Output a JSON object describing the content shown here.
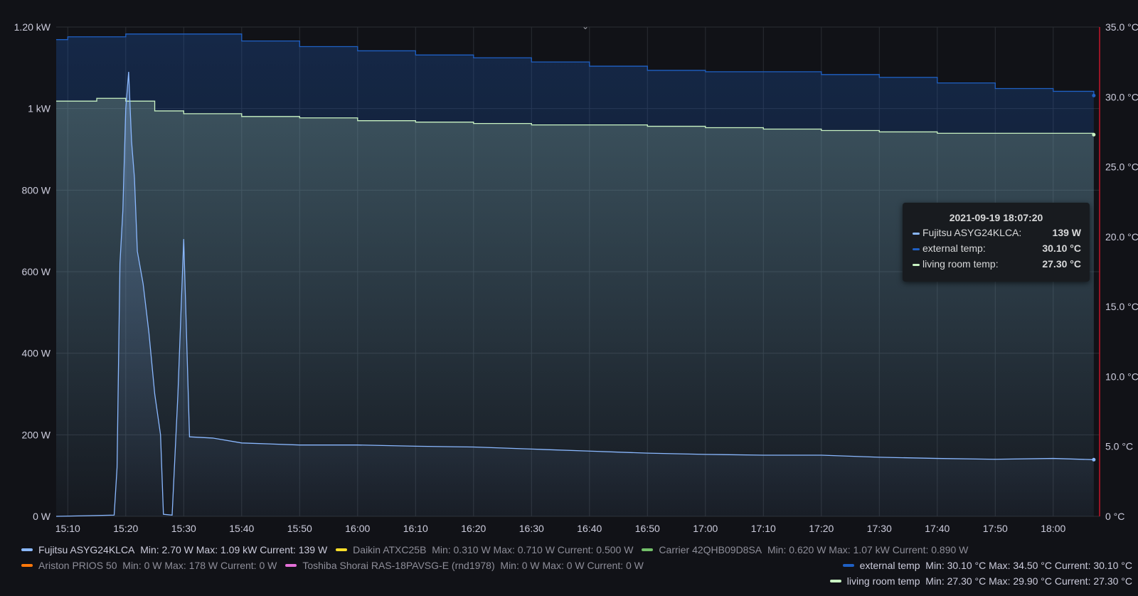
{
  "chart_data": {
    "type": "line",
    "x_tick_labels": [
      "15:10",
      "15:20",
      "15:30",
      "15:40",
      "15:50",
      "16:00",
      "16:10",
      "16:20",
      "16:30",
      "16:40",
      "16:50",
      "17:00",
      "17:10",
      "17:20",
      "17:30",
      "17:40",
      "17:50",
      "18:00"
    ],
    "x_range": [
      "15:08",
      "18:08"
    ],
    "y_left": {
      "ticks": [
        "0 W",
        "200 W",
        "400 W",
        "600 W",
        "800 W",
        "1 kW",
        "1.20 kW"
      ],
      "range": [
        0,
        1200
      ],
      "unit": "W"
    },
    "y_right": {
      "ticks": [
        "0 °C",
        "5.0 °C",
        "10.0 °C",
        "15.0 °C",
        "20.0 °C",
        "25.0 °C",
        "30.0 °C",
        "35.0 °C"
      ],
      "range": [
        0,
        35
      ],
      "unit": "°C"
    },
    "grid": true,
    "legend_placement": "bottom",
    "series": [
      {
        "name": "Fujitsu ASYG24KLCA",
        "axis": "left",
        "color": "#8ab8ff",
        "points": [
          [
            "15:08",
            0
          ],
          [
            "15:18",
            3
          ],
          [
            "15:18.5",
            120
          ],
          [
            "15:19",
            620
          ],
          [
            "15:19.5",
            750
          ],
          [
            "15:20",
            1000
          ],
          [
            "15:20.5",
            1090
          ],
          [
            "15:21",
            920
          ],
          [
            "15:21.5",
            830
          ],
          [
            "15:22",
            650
          ],
          [
            "15:23",
            570
          ],
          [
            "15:24",
            450
          ],
          [
            "15:25",
            300
          ],
          [
            "15:26",
            200
          ],
          [
            "15:26.5",
            5
          ],
          [
            "15:28",
            3
          ],
          [
            "15:29",
            300
          ],
          [
            "15:30",
            680
          ],
          [
            "15:31",
            195
          ],
          [
            "15:35",
            192
          ],
          [
            "15:40",
            180
          ],
          [
            "15:50",
            175
          ],
          [
            "16:00",
            175
          ],
          [
            "16:10",
            172
          ],
          [
            "16:20",
            170
          ],
          [
            "16:30",
            165
          ],
          [
            "16:40",
            160
          ],
          [
            "16:50",
            155
          ],
          [
            "17:00",
            152
          ],
          [
            "17:10",
            150
          ],
          [
            "17:20",
            150
          ],
          [
            "17:30",
            145
          ],
          [
            "17:40",
            142
          ],
          [
            "17:50",
            140
          ],
          [
            "18:00",
            142
          ],
          [
            "18:07",
            139
          ]
        ]
      },
      {
        "name": "external temp",
        "axis": "right",
        "color": "#1f60c4",
        "points": [
          [
            "15:08",
            34.1
          ],
          [
            "15:10",
            34.3
          ],
          [
            "15:20",
            34.5
          ],
          [
            "15:30",
            34.5
          ],
          [
            "15:40",
            34.0
          ],
          [
            "15:50",
            33.6
          ],
          [
            "16:00",
            33.3
          ],
          [
            "16:10",
            33.0
          ],
          [
            "16:20",
            32.8
          ],
          [
            "16:30",
            32.5
          ],
          [
            "16:40",
            32.2
          ],
          [
            "16:50",
            31.9
          ],
          [
            "17:00",
            31.8
          ],
          [
            "17:10",
            31.8
          ],
          [
            "17:20",
            31.6
          ],
          [
            "17:30",
            31.4
          ],
          [
            "17:40",
            31.0
          ],
          [
            "17:50",
            30.6
          ],
          [
            "18:00",
            30.4
          ],
          [
            "18:07",
            30.1
          ]
        ]
      },
      {
        "name": "living room temp",
        "axis": "right",
        "color": "#c8f2c2",
        "points": [
          [
            "15:08",
            29.7
          ],
          [
            "15:15",
            29.9
          ],
          [
            "15:20",
            29.7
          ],
          [
            "15:25",
            29.0
          ],
          [
            "15:30",
            28.8
          ],
          [
            "15:40",
            28.6
          ],
          [
            "15:50",
            28.5
          ],
          [
            "16:00",
            28.3
          ],
          [
            "16:10",
            28.2
          ],
          [
            "16:20",
            28.1
          ],
          [
            "16:30",
            28.0
          ],
          [
            "16:40",
            28.0
          ],
          [
            "16:50",
            27.9
          ],
          [
            "17:00",
            27.8
          ],
          [
            "17:10",
            27.7
          ],
          [
            "17:20",
            27.6
          ],
          [
            "17:30",
            27.5
          ],
          [
            "17:40",
            27.4
          ],
          [
            "17:50",
            27.4
          ],
          [
            "18:00",
            27.4
          ],
          [
            "18:07",
            27.3
          ]
        ]
      }
    ]
  },
  "legend": {
    "row1": [
      {
        "label": "Fujitsu ASYG24KLCA",
        "stats": "Min: 2.70 W  Max: 1.09 kW  Current: 139 W",
        "color": "#8ab8ff",
        "dim": false
      },
      {
        "label": "Daikin ATXC25B",
        "stats": "Min: 0.310 W  Max: 0.710 W  Current: 0.500 W",
        "color": "#fade2a",
        "dim": true
      },
      {
        "label": "Carrier 42QHB09D8SA",
        "stats": "Min: 0.620 W  Max: 1.07 kW  Current: 0.890 W",
        "color": "#73bf69",
        "dim": true
      }
    ],
    "row2": [
      {
        "label": "Ariston PRIOS 50",
        "stats": "Min: 0 W  Max: 178 W  Current: 0 W",
        "color": "#ff780a",
        "dim": true
      },
      {
        "label": "Toshiba Shorai RAS-18PAVSG-E (rnd1978)",
        "stats": "Min: 0 W  Max: 0 W  Current: 0 W",
        "color": "#e46fd7",
        "dim": true
      }
    ],
    "right": [
      {
        "label": "external temp",
        "stats": "Min: 30.10 °C  Max: 34.50 °C  Current: 30.10 °C",
        "color": "#1f60c4"
      },
      {
        "label": "living room temp",
        "stats": "Min: 27.30 °C  Max: 29.90 °C  Current: 27.30 °C",
        "color": "#c8f2c2"
      }
    ]
  },
  "tooltip": {
    "time": "2021-09-19 18:07:20",
    "rows": [
      {
        "label": "Fujitsu ASYG24KLCA:",
        "value": "139 W",
        "color": "#8ab8ff"
      },
      {
        "label": "external temp:",
        "value": "30.10 °C",
        "color": "#1f60c4"
      },
      {
        "label": "living room temp:",
        "value": "27.30 °C",
        "color": "#c8f2c2"
      }
    ]
  },
  "chevron_icon": "chevron-down-icon"
}
